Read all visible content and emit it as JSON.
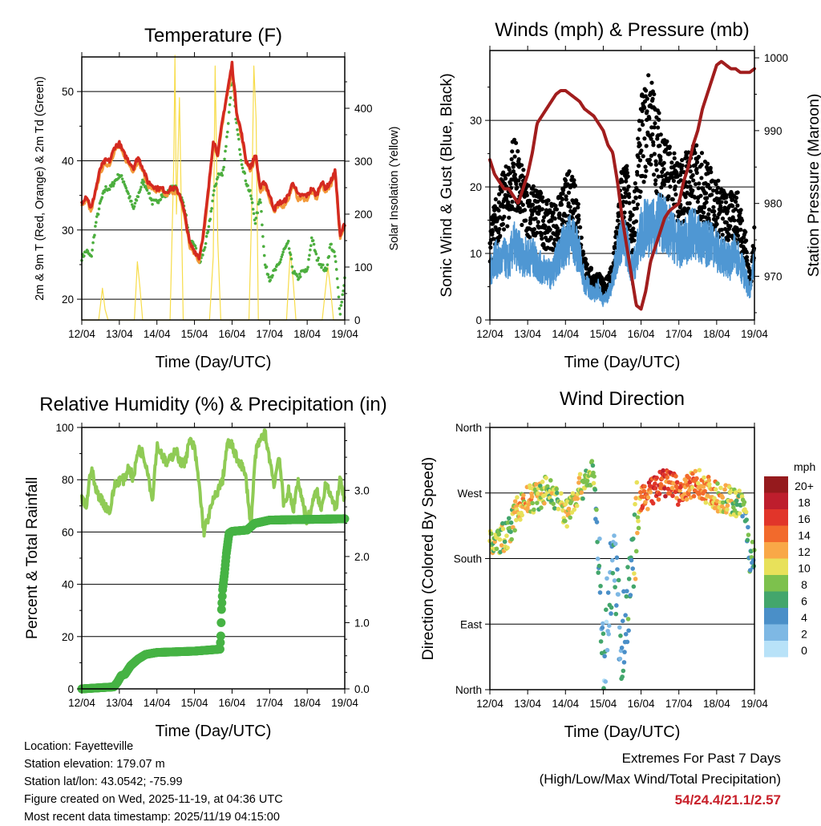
{
  "x_ticks": [
    "12/04",
    "13/04",
    "14/04",
    "15/04",
    "16/04",
    "17/04",
    "18/04",
    "19/04"
  ],
  "x_label": "Time (Day/UTC)",
  "chart_data": [
    {
      "type": "line",
      "title": "Temperature (F)",
      "ylabel": "2m & 9m T (Red, Orange) & 2m Td (Green)",
      "ylabel_right": "Solar Insolation (Yellow)",
      "ylim": [
        17,
        55
      ],
      "yticks": [
        20,
        30,
        40,
        50
      ],
      "ylim_right": [
        0,
        497
      ],
      "yticks_right": [
        0,
        100,
        200,
        300,
        400
      ],
      "x_days": [
        0,
        0.125,
        0.25,
        0.375,
        0.5,
        0.625,
        0.75,
        0.875,
        1,
        1.125,
        1.25,
        1.375,
        1.5,
        1.625,
        1.75,
        1.875,
        2,
        2.125,
        2.25,
        2.375,
        2.5,
        2.625,
        2.75,
        2.875,
        3,
        3.125,
        3.25,
        3.375,
        3.5,
        3.625,
        3.75,
        3.875,
        4,
        4.125,
        4.25,
        4.375,
        4.5,
        4.625,
        4.75,
        4.875,
        5,
        5.125,
        5.25,
        5.375,
        5.5,
        5.625,
        5.75,
        5.875,
        6,
        6.125,
        6.25,
        6.375,
        6.5,
        6.625,
        6.75,
        6.875,
        7
      ],
      "series": [
        {
          "name": "2m T",
          "color": "#d42a20",
          "values": [
            34,
            35,
            33,
            36,
            39,
            40,
            40,
            42,
            42.5,
            41,
            40,
            39,
            40.5,
            39,
            37,
            36.5,
            36,
            36,
            35.5,
            36,
            36,
            35,
            32,
            28,
            27,
            26,
            30,
            36,
            43,
            41,
            46,
            50,
            54,
            47,
            44,
            40,
            39,
            41,
            36,
            37,
            35,
            33,
            34,
            34,
            35,
            37,
            35,
            35,
            35,
            36,
            35,
            37,
            36,
            37,
            38.5,
            29,
            31
          ]
        },
        {
          "name": "9m T",
          "color": "#f39a3a",
          "values": [
            33.5,
            34.5,
            32.5,
            35.5,
            38.5,
            39.5,
            39.5,
            41.5,
            42,
            40.5,
            39.5,
            38.5,
            40,
            38.5,
            36.5,
            36,
            35.5,
            35.5,
            35,
            35.5,
            35.5,
            34.5,
            31.5,
            27.5,
            26.5,
            25.5,
            29.5,
            35.5,
            42.5,
            40.5,
            45.5,
            49.5,
            53,
            46.5,
            43.5,
            39.5,
            38.5,
            40.5,
            35.5,
            36.5,
            34.5,
            32.5,
            33.5,
            33.5,
            34.5,
            36.5,
            34.5,
            34.5,
            34.5,
            35.5,
            34.5,
            36.5,
            35.5,
            36.5,
            38,
            28.5,
            30.5
          ]
        },
        {
          "name": "2m Td",
          "color": "#4cae3e",
          "values": [
            26,
            27,
            26,
            31,
            34,
            36,
            36,
            37,
            38,
            37,
            35,
            33,
            35,
            37,
            36,
            34,
            34,
            35,
            35,
            36,
            36,
            35,
            33,
            28,
            28,
            25,
            27,
            30,
            35,
            38,
            38,
            44,
            52,
            45,
            40,
            37,
            35,
            31,
            35,
            25,
            23,
            24,
            25,
            27,
            28,
            24,
            23,
            24,
            24,
            29,
            26,
            25,
            24,
            28,
            26,
            18,
            23
          ]
        }
      ],
      "solar": {
        "name": "Solar Insolation",
        "color": "#f7dc4a",
        "points": [
          [
            0,
            0
          ],
          [
            0.45,
            0
          ],
          [
            0.55,
            60
          ],
          [
            0.62,
            20
          ],
          [
            0.7,
            0
          ],
          [
            1.4,
            0
          ],
          [
            1.48,
            110
          ],
          [
            1.55,
            60
          ],
          [
            1.62,
            0
          ],
          [
            2.35,
            0
          ],
          [
            2.45,
            300
          ],
          [
            2.48,
            500
          ],
          [
            2.52,
            200
          ],
          [
            2.6,
            420
          ],
          [
            2.7,
            0
          ],
          [
            3.4,
            0
          ],
          [
            3.5,
            120
          ],
          [
            3.55,
            480
          ],
          [
            3.62,
            150
          ],
          [
            3.7,
            0
          ],
          [
            4.45,
            0
          ],
          [
            4.52,
            200
          ],
          [
            4.58,
            480
          ],
          [
            4.64,
            380
          ],
          [
            4.7,
            0
          ],
          [
            5.45,
            0
          ],
          [
            5.55,
            130
          ],
          [
            5.62,
            80
          ],
          [
            5.7,
            0
          ],
          [
            6.4,
            0
          ],
          [
            6.55,
            100
          ],
          [
            6.62,
            60
          ],
          [
            6.7,
            0
          ],
          [
            7,
            0
          ]
        ]
      }
    },
    {
      "type": "scatter",
      "title": "Winds (mph) & Pressure (mb)",
      "ylabel": "Sonic Wind & Gust (Blue, Black)",
      "ylabel_right": "Station Pressure (Maroon)",
      "ylim": [
        0,
        40.5
      ],
      "yticks": [
        0,
        10,
        20,
        30
      ],
      "ylim_right": [
        964,
        1001
      ],
      "yticks_right": [
        970,
        980,
        990,
        1000
      ],
      "x_days": [
        0,
        0.125,
        0.25,
        0.375,
        0.5,
        0.625,
        0.75,
        0.875,
        1,
        1.125,
        1.25,
        1.375,
        1.5,
        1.625,
        1.75,
        1.875,
        2,
        2.125,
        2.25,
        2.375,
        2.5,
        2.625,
        2.75,
        2.875,
        3,
        3.125,
        3.25,
        3.375,
        3.5,
        3.625,
        3.75,
        3.875,
        4,
        4.125,
        4.25,
        4.375,
        4.5,
        4.625,
        4.75,
        4.875,
        5,
        5.125,
        5.25,
        5.375,
        5.5,
        5.625,
        5.75,
        5.875,
        6,
        6.125,
        6.25,
        6.375,
        6.5,
        6.625,
        6.75,
        6.875,
        7
      ],
      "series": [
        {
          "name": "Sonic Wind",
          "color": "#4f97d3",
          "values": [
            7,
            10,
            9,
            10,
            9,
            12,
            11,
            10,
            10,
            10,
            9,
            8,
            8,
            7,
            9,
            11,
            12,
            13,
            12,
            10,
            6,
            5,
            4,
            5,
            3,
            4,
            6,
            11,
            13,
            12,
            8,
            10,
            14,
            15,
            14,
            15,
            16,
            15,
            14,
            13,
            12,
            12,
            13,
            14,
            13,
            12,
            12,
            13,
            11,
            10,
            10,
            9,
            11,
            9,
            7,
            4,
            9
          ]
        },
        {
          "name": "Gust",
          "color": "#000000",
          "values": [
            12,
            15,
            17,
            19,
            20,
            24,
            21,
            19,
            18,
            17,
            17,
            16,
            15,
            15,
            15,
            16,
            18,
            19,
            20,
            13,
            8,
            7,
            6,
            6,
            5,
            6,
            7,
            14,
            20,
            20,
            12,
            20,
            28,
            30,
            32,
            28,
            26,
            24,
            22,
            21,
            20,
            21,
            22,
            22,
            22,
            21,
            20,
            19,
            18,
            17,
            16,
            16,
            17,
            15,
            12,
            6,
            12
          ]
        },
        {
          "name": "Station Pressure",
          "color": "#a11d1d",
          "values": [
            986,
            984,
            983,
            982,
            982,
            981,
            980,
            982,
            984,
            987,
            991,
            992,
            993,
            994,
            995,
            995.5,
            995.5,
            995,
            994.5,
            994,
            993,
            992.5,
            992,
            991,
            990,
            988,
            987,
            983,
            978,
            974,
            970,
            966,
            965.5,
            968,
            972,
            974,
            976,
            978,
            979,
            979.5,
            980,
            983,
            985,
            988,
            990,
            993,
            995,
            997,
            999,
            999.5,
            999,
            998.5,
            998.5,
            998,
            998,
            998,
            998.5
          ]
        }
      ]
    },
    {
      "type": "line",
      "title": "Relative Humidity (%) & Precipitation (in)",
      "ylabel": "Percent & Total Rainfall",
      "ylim": [
        0,
        100
      ],
      "yticks": [
        0,
        20,
        40,
        60,
        80,
        100
      ],
      "ylim_right": [
        0,
        3.95
      ],
      "yticks_right": [
        "0.0",
        "1.0",
        "2.0",
        "3.0"
      ],
      "series": [
        {
          "name": "Relative Humidity",
          "color": "#8fcb55",
          "x_days": [
            0,
            0.125,
            0.25,
            0.375,
            0.5,
            0.625,
            0.75,
            0.875,
            1,
            1.125,
            1.25,
            1.375,
            1.5,
            1.625,
            1.75,
            1.875,
            2,
            2.125,
            2.25,
            2.375,
            2.5,
            2.625,
            2.75,
            2.875,
            3,
            3.125,
            3.25,
            3.375,
            3.5,
            3.625,
            3.75,
            3.875,
            4,
            4.125,
            4.25,
            4.375,
            4.5,
            4.625,
            4.75,
            4.875,
            5,
            5.125,
            5.25,
            5.375,
            5.5,
            5.625,
            5.75,
            5.875,
            6,
            6.125,
            6.25,
            6.375,
            6.5,
            6.625,
            6.75,
            6.875,
            7
          ],
          "values": [
            72,
            70,
            85,
            76,
            73,
            70,
            68,
            78,
            80,
            80,
            85,
            80,
            92,
            90,
            84,
            72,
            93,
            90,
            86,
            88,
            92,
            86,
            87,
            95,
            92,
            78,
            60,
            66,
            72,
            76,
            80,
            94,
            93,
            88,
            86,
            80,
            62,
            90,
            95,
            98,
            88,
            78,
            90,
            70,
            76,
            68,
            80,
            72,
            64,
            70,
            76,
            68,
            80,
            74,
            68,
            80,
            72
          ]
        },
        {
          "name": "Total Precipitation",
          "color": "#46b344",
          "x_days": [
            0,
            0.85,
            0.95,
            1.05,
            1.15,
            1.3,
            1.5,
            1.7,
            2.0,
            2.5,
            3.0,
            3.68,
            3.7,
            3.72,
            3.75,
            3.8,
            3.85,
            3.92,
            4.0,
            4.4,
            4.6,
            5.0,
            6.0,
            7.0
          ],
          "values": [
            0,
            0.03,
            0.1,
            0.2,
            0.22,
            0.35,
            0.45,
            0.52,
            0.55,
            0.56,
            0.57,
            0.6,
            0.8,
            1.2,
            1.5,
            1.75,
            2.05,
            2.35,
            2.38,
            2.4,
            2.5,
            2.55,
            2.56,
            2.57
          ]
        }
      ]
    },
    {
      "type": "scatter",
      "title": "Wind Direction",
      "ylabel": "Direction (Colored By Speed)",
      "ylim": [
        0,
        360
      ],
      "yticks": [
        "North",
        "East",
        "South",
        "West",
        "North"
      ],
      "x_days": [
        0,
        0.25,
        0.5,
        0.75,
        1,
        1.25,
        1.5,
        1.75,
        2,
        2.25,
        2.5,
        2.75,
        3,
        3.25,
        3.5,
        3.75,
        4,
        4.25,
        4.5,
        4.75,
        5,
        5.25,
        5.5,
        5.75,
        6,
        6.25,
        6.5,
        6.75,
        6.875,
        7
      ],
      "direction_deg": [
        200,
        205,
        215,
        250,
        260,
        265,
        275,
        265,
        240,
        265,
        285,
        300,
        40,
        190,
        50,
        170,
        260,
        270,
        280,
        285,
        270,
        275,
        285,
        275,
        265,
        262,
        258,
        250,
        180,
        185
      ],
      "speed_mph": [
        9,
        10,
        9,
        12,
        12,
        11,
        10,
        9,
        11,
        12,
        10,
        8,
        4,
        5,
        5,
        7,
        14,
        16,
        17,
        16,
        15,
        14,
        14,
        13,
        12,
        11,
        10,
        8,
        7,
        8
      ],
      "legend": {
        "title": "mph",
        "labels": [
          "20+",
          "18",
          "16",
          "14",
          "12",
          "10",
          "8",
          "6",
          "4",
          "2",
          "0"
        ],
        "colors": [
          "#951a1d",
          "#be1e2d",
          "#e1352a",
          "#f26a2c",
          "#f9a847",
          "#e8e15a",
          "#7dc14d",
          "#43a66c",
          "#4a8fc8",
          "#7eb8e4",
          "#b8e2f8"
        ]
      }
    }
  ],
  "info": {
    "location": "Location: Fayetteville",
    "elevation": "Station elevation: 179.07 m",
    "latlon": "Station lat/lon: 43.0542; -75.99",
    "created": "Figure created on Wed, 2025-11-19, at 04:36 UTC",
    "recent": "Most recent data timestamp: 2025/11/19 04:15:00"
  },
  "extremes": {
    "title": "Extremes For Past 7 Days",
    "subtitle": "(High/Low/Max Wind/Total Precipitation)",
    "value": "54/24.4/21.1/2.57"
  }
}
